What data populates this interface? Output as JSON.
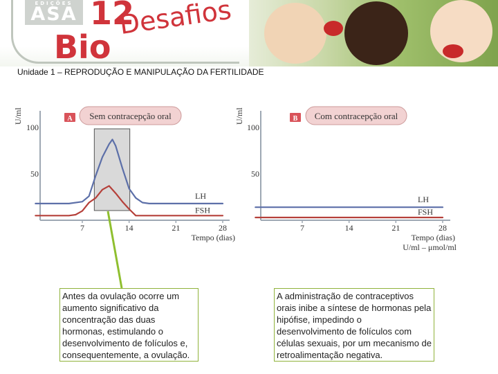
{
  "header": {
    "brand_small": "EDIÇÕES",
    "brand_name": "ASA",
    "grade": "12",
    "title_bio": "Bio",
    "title_desafios": "Desafios"
  },
  "unit_title": "Unidade 1 – REPRODUÇÃO E MANIPULAÇÃO DA FERTILIDADE",
  "colors": {
    "lh": "#5c6fa8",
    "fsh": "#b5403a",
    "badge": "#d9535a",
    "title_pill": "#f2d2d2",
    "ovulation_box": "#d9d9d9",
    "axes": "#9ea8b3",
    "pointer": "#8fbf2f"
  },
  "chart_data": [
    {
      "type": "line",
      "panel_letter": "A",
      "title": "Sem contracepção oral",
      "ylabel": "U/ml",
      "xlabel": "Tempo (dias)",
      "xlim": [
        0,
        28
      ],
      "ylim": [
        0,
        100
      ],
      "xticks": [
        "7",
        "14",
        "21",
        "28"
      ],
      "yticks": [
        "50",
        "100"
      ],
      "highlight_range": [
        9,
        14
      ],
      "series": [
        {
          "name": "LH",
          "x": [
            0,
            5,
            7,
            8,
            9,
            10,
            11,
            11.5,
            12,
            13,
            14,
            15,
            16,
            17,
            28
          ],
          "y": [
            18,
            18,
            20,
            26,
            48,
            68,
            82,
            87,
            80,
            56,
            34,
            24,
            19,
            18,
            18
          ]
        },
        {
          "name": "FSH",
          "x": [
            0,
            5,
            6,
            7,
            8,
            9,
            10,
            11,
            12,
            13,
            14,
            15,
            28
          ],
          "y": [
            5,
            5,
            6,
            10,
            19,
            24,
            33,
            37,
            29,
            20,
            12,
            5,
            5
          ]
        }
      ]
    },
    {
      "type": "line",
      "panel_letter": "B",
      "title": "Com contracepção oral",
      "ylabel": "U/ml",
      "xlabel": "Tempo (dias)",
      "xlim": [
        0,
        28
      ],
      "ylim": [
        0,
        100
      ],
      "xticks": [
        "7",
        "14",
        "21",
        "28"
      ],
      "yticks": [
        "50",
        "100"
      ],
      "unit_note": "U/ml – μmol/ml",
      "series": [
        {
          "name": "LH",
          "x": [
            0,
            28
          ],
          "y": [
            14,
            14
          ]
        },
        {
          "name": "FSH",
          "x": [
            0,
            28
          ],
          "y": [
            3,
            3
          ]
        }
      ]
    }
  ],
  "notes": {
    "a": "Antes da ovulação ocorre um aumento significativo da concentração das duas hormonas, estimulando o desenvolvimento de folículos e, consequentemente, a ovulação.",
    "b": "A administração de contraceptivos orais inibe a síntese de hormonas pela hipófise, impedindo o desenvolvimento de folículos com células sexuais, por um mecanismo de retroalimentação negativa."
  }
}
